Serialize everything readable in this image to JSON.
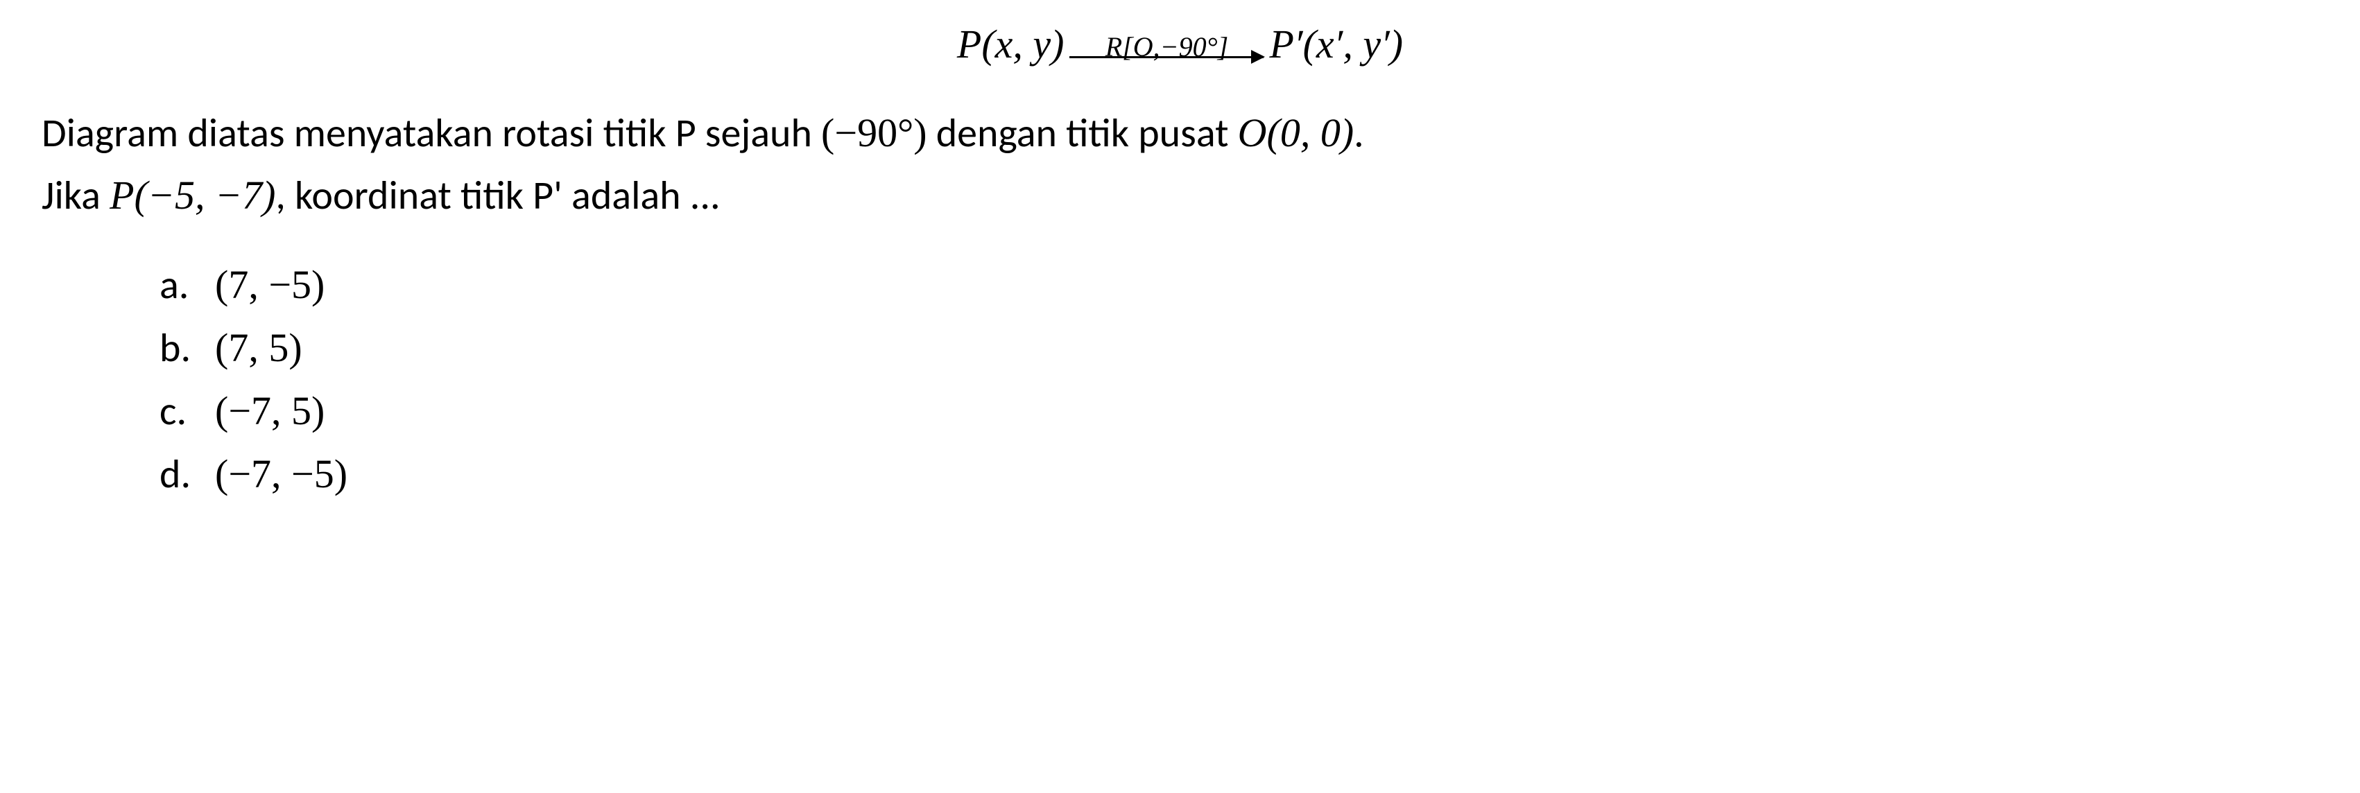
{
  "formula": {
    "left": "P(x, y)",
    "arrow_label": "R[O,−90°]",
    "right": "P′(x′, y′)"
  },
  "description": {
    "line1_part1": "Diagram diatas menyatakan rotasi titik P sejauh ",
    "angle": "(−90°)",
    "line1_part2": " dengan titik pusat ",
    "center": "O(0, 0)",
    "period1": ".",
    "line2_part1": "Jika ",
    "point": "P(−5, −7)",
    "line2_part2": ", koordinat titik P' adalah ..."
  },
  "options": [
    {
      "label": "a.",
      "value": "(7, −5)"
    },
    {
      "label": "b.",
      "value": "(7, 5)"
    },
    {
      "label": "c.",
      "value": "(−7, 5)"
    },
    {
      "label": "d.",
      "value": "(−7, −5)"
    }
  ],
  "styles": {
    "background_color": "#ffffff",
    "text_color": "#000000",
    "formula_fontsize": 58,
    "body_fontsize": 58,
    "arrow_label_fontsize": 40,
    "arrow_width": 280,
    "options_indent": 170,
    "line_height": 1.55
  }
}
